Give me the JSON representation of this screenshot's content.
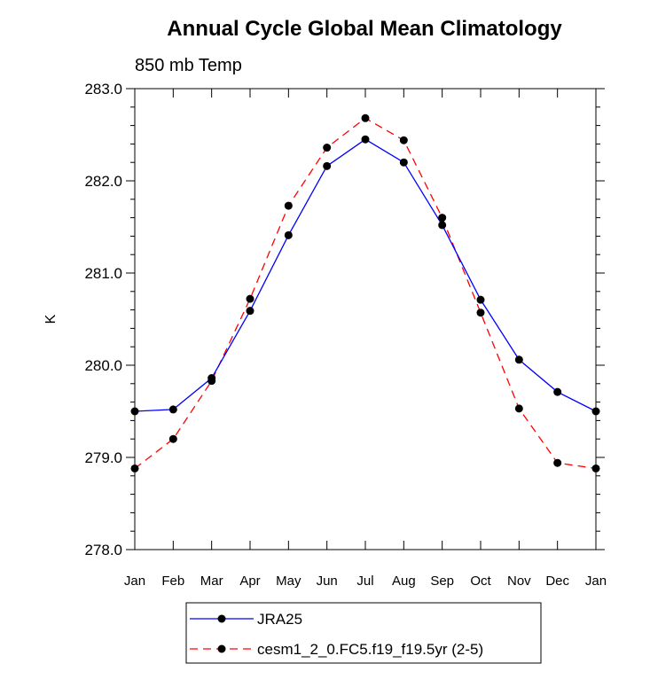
{
  "chart_data": {
    "type": "line",
    "title": "Annual Cycle Global Mean Climatology",
    "subtitle": "850 mb Temp",
    "xlabel": "",
    "ylabel": "K",
    "categories": [
      "Jan",
      "Feb",
      "Mar",
      "Apr",
      "May",
      "Jun",
      "Jul",
      "Aug",
      "Sep",
      "Oct",
      "Nov",
      "Dec",
      "Jan"
    ],
    "ylim": [
      278.0,
      283.0
    ],
    "yticks": [
      "278.0",
      "279.0",
      "280.0",
      "281.0",
      "282.0",
      "283.0"
    ],
    "grid": false,
    "legend_position": "bottom-center",
    "series": [
      {
        "name": "JRA25",
        "color": "#0000ff",
        "line_style": "solid",
        "marker": "filled-circle",
        "values": [
          279.5,
          279.52,
          279.86,
          280.59,
          281.41,
          282.16,
          282.45,
          282.2,
          281.52,
          280.71,
          280.06,
          279.71,
          279.5
        ]
      },
      {
        "name": "cesm1_2_0.FC5.f19_f19.5yr (2-5)",
        "color": "#ff0000",
        "line_style": "dashed",
        "marker": "filled-circle",
        "values": [
          278.88,
          279.2,
          279.83,
          280.72,
          281.73,
          282.36,
          282.68,
          282.44,
          281.6,
          280.57,
          279.53,
          278.94,
          278.88
        ]
      }
    ]
  }
}
